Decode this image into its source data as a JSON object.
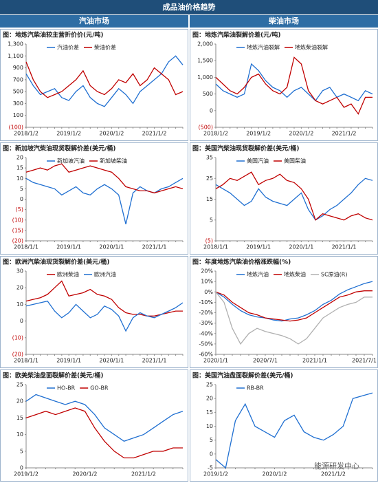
{
  "header": {
    "title": "成品油价格趋势",
    "left": "汽油市场",
    "right": "柴油市场",
    "watermark": "能源研发中心"
  },
  "chart_data": [
    {
      "type": "line",
      "title": "图：地炼汽柴油较主营折价价(元/吨)",
      "categories": [
        "2018/1/2",
        null,
        null,
        null,
        null,
        null,
        "2019/1/2",
        null,
        null,
        null,
        null,
        null,
        "2020/1/2",
        null,
        null,
        null,
        null,
        null,
        "2021/1/2",
        null,
        null,
        null,
        null
      ],
      "series": [
        {
          "name": "汽油价差",
          "color": "#1f6fd1",
          "values": [
            800,
            600,
            450,
            500,
            550,
            400,
            350,
            500,
            600,
            400,
            300,
            250,
            400,
            550,
            450,
            300,
            500,
            600,
            700,
            800,
            1000,
            1100,
            950
          ]
        },
        {
          "name": "柴油价差",
          "color": "#c00000",
          "values": [
            1000,
            700,
            500,
            400,
            450,
            500,
            600,
            700,
            850,
            600,
            500,
            450,
            550,
            700,
            650,
            800,
            600,
            700,
            900,
            800,
            700,
            450,
            500
          ]
        }
      ],
      "ylim": [
        -100,
        1300
      ],
      "yticks": [
        {
          "value": -100,
          "label": "(100)"
        },
        100,
        300,
        500,
        700,
        900,
        {
          "value": 1100,
          "label": "1,100"
        },
        {
          "value": 1300,
          "label": "1,300"
        }
      ]
    },
    {
      "type": "line",
      "title": "图：地炼汽柴油裂解价差(元/吨)",
      "categories": [
        "2018/1/2",
        null,
        null,
        null,
        null,
        null,
        "2019/1/2",
        null,
        null,
        null,
        null,
        null,
        "2020/1/2",
        null,
        null,
        null,
        null,
        null,
        "2021/1/2",
        null,
        null,
        null,
        null
      ],
      "series": [
        {
          "name": "地炼汽油裂解",
          "color": "#1f6fd1",
          "values": [
            800,
            600,
            500,
            400,
            500,
            1400,
            1200,
            900,
            700,
            600,
            400,
            600,
            700,
            500,
            300,
            600,
            700,
            400,
            500,
            400,
            300,
            600,
            500
          ]
        },
        {
          "name": "地炼柴油裂解",
          "color": "#c00000",
          "values": [
            1000,
            800,
            600,
            500,
            700,
            1000,
            1100,
            800,
            600,
            500,
            700,
            1600,
            1400,
            600,
            300,
            200,
            300,
            400,
            100,
            200,
            -100,
            400,
            400
          ]
        }
      ],
      "ylim": [
        -500,
        2000
      ],
      "yticks": [
        {
          "value": -500,
          "label": "(500)"
        },
        0,
        500,
        {
          "value": 1000,
          "label": "1,000"
        },
        {
          "value": 1500,
          "label": "1,500"
        },
        {
          "value": 2000,
          "label": "2,000"
        }
      ]
    },
    {
      "type": "line",
      "title": "图：新加坡汽柴油现货裂解价差(美元/桶)",
      "categories": [
        "2018/1/1",
        null,
        null,
        null,
        null,
        null,
        "2019/1/1",
        null,
        null,
        null,
        null,
        null,
        "2020/1/1",
        null,
        null,
        null,
        null,
        null,
        "2021/1/1",
        null,
        null,
        null,
        null
      ],
      "series": [
        {
          "name": "新加坡汽油",
          "color": "#1f6fd1",
          "values": [
            10,
            8,
            7,
            6,
            5,
            2,
            4,
            6,
            3,
            2,
            5,
            7,
            5,
            2,
            -12,
            3,
            6,
            4,
            3,
            5,
            6,
            8,
            10
          ]
        },
        {
          "name": "新加坡柴油",
          "color": "#c00000",
          "values": [
            13,
            14,
            15,
            14,
            16,
            17,
            13,
            14,
            15,
            16,
            15,
            14,
            13,
            10,
            6,
            5,
            4,
            4,
            3,
            4,
            5,
            6,
            5
          ]
        }
      ],
      "ylim": [
        -20,
        20
      ],
      "yticks": [
        {
          "value": -20,
          "label": "(20)"
        },
        {
          "value": -15,
          "label": "(15)"
        },
        {
          "value": -10,
          "label": "(10)"
        },
        {
          "value": -5,
          "label": "(5)"
        },
        0,
        5,
        10,
        15,
        20
      ]
    },
    {
      "type": "line",
      "title": "图：美国汽柴油现货裂解价差(美元/桶)",
      "categories": [
        "2018/1/1",
        null,
        null,
        null,
        null,
        null,
        "2019/1/1",
        null,
        null,
        null,
        null,
        null,
        "2020/1/1",
        null,
        null,
        null,
        null,
        null,
        "2021/1/1",
        null,
        null,
        null,
        null
      ],
      "series": [
        {
          "name": "美国汽油",
          "color": "#1f6fd1",
          "values": [
            22,
            20,
            18,
            15,
            12,
            14,
            20,
            16,
            14,
            13,
            12,
            15,
            18,
            10,
            5,
            7,
            10,
            12,
            15,
            18,
            22,
            25,
            24
          ]
        },
        {
          "name": "美国柴油",
          "color": "#c00000",
          "values": [
            20,
            22,
            25,
            24,
            26,
            28,
            22,
            24,
            25,
            27,
            24,
            23,
            20,
            15,
            5,
            8,
            7,
            6,
            5,
            7,
            8,
            6,
            5
          ]
        }
      ],
      "ylim": [
        -5,
        35
      ],
      "yticks": [
        {
          "value": -5,
          "label": "(5)"
        },
        5,
        15,
        25,
        35
      ]
    },
    {
      "type": "line",
      "title": "图：欧洲汽柴油现货裂解价差(美元/桶)",
      "categories": [
        "2018/1/1",
        null,
        null,
        null,
        null,
        null,
        "2019/1/1",
        null,
        null,
        null,
        null,
        null,
        "2020/1/1",
        null,
        null,
        null,
        null,
        null,
        "2021/1/1",
        null,
        null,
        null,
        null
      ],
      "series": [
        {
          "name": "欧洲柴油",
          "color": "#c00000",
          "values": [
            12,
            13,
            14,
            16,
            20,
            24,
            15,
            16,
            17,
            19,
            16,
            15,
            13,
            8,
            5,
            4,
            4,
            3,
            3,
            4,
            5,
            6,
            6
          ]
        },
        {
          "name": "欧洲汽油",
          "color": "#1f6fd1",
          "values": [
            9,
            10,
            11,
            12,
            6,
            2,
            5,
            10,
            6,
            2,
            4,
            9,
            7,
            3,
            -6,
            2,
            5,
            3,
            2,
            4,
            6,
            8,
            11
          ]
        }
      ],
      "ylim": [
        -20,
        30
      ],
      "yticks": [
        {
          "value": -20,
          "label": "(20)"
        },
        {
          "value": -10,
          "label": "(10)"
        },
        0,
        10,
        20,
        30
      ]
    },
    {
      "type": "line",
      "title": "图：年度地炼汽柴油价格涨跌幅(%)",
      "categories": [
        "2020/1/1",
        null,
        null,
        null,
        null,
        null,
        "2020/7/1",
        null,
        null,
        null,
        null,
        null,
        "2021/1/1",
        null,
        null,
        null,
        null,
        null,
        "2021/7/1",
        null
      ],
      "series": [
        {
          "name": "地炼汽油",
          "color": "#1f6fd1",
          "values": [
            0,
            -5,
            -12,
            -18,
            -22,
            -24,
            -25,
            -27,
            -28,
            -26,
            -25,
            -22,
            -18,
            -12,
            -8,
            -2,
            2,
            5,
            8,
            10
          ]
        },
        {
          "name": "地炼柴油",
          "color": "#c00000",
          "values": [
            0,
            -3,
            -10,
            -15,
            -20,
            -22,
            -25,
            -26,
            -27,
            -28,
            -27,
            -25,
            -20,
            -15,
            -10,
            -5,
            -3,
            0,
            1,
            1
          ]
        },
        {
          "name": "SC原油(R)",
          "color": "#b0b0b0",
          "values": [
            0,
            -10,
            -35,
            -50,
            -40,
            -35,
            -38,
            -40,
            -42,
            -45,
            -50,
            -45,
            -35,
            -25,
            -20,
            -15,
            -12,
            -10,
            -5,
            -5
          ]
        }
      ],
      "ylim": [
        -60,
        20
      ],
      "yticks": [
        {
          "value": -60,
          "label": "-60%"
        },
        {
          "value": -50,
          "label": "-50%"
        },
        {
          "value": -40,
          "label": "-40%"
        },
        {
          "value": -30,
          "label": "-30%"
        },
        {
          "value": -20,
          "label": "-20%"
        },
        {
          "value": -10,
          "label": "-10%"
        },
        {
          "value": 0,
          "label": "0%"
        },
        {
          "value": 10,
          "label": "10%"
        },
        {
          "value": 20,
          "label": "20%"
        }
      ]
    },
    {
      "type": "line",
      "title": "图：欧美柴油盘面裂解价差(美元/桶)",
      "categories": [
        "2019/1/2",
        null,
        null,
        null,
        null,
        null,
        "2020/1/2",
        null,
        null,
        null,
        null,
        null,
        "2021/1/2",
        null,
        null,
        null,
        null
      ],
      "series": [
        {
          "name": "HO-BR",
          "color": "#1f6fd1",
          "values": [
            20,
            22,
            21,
            20,
            19,
            20,
            19,
            16,
            12,
            10,
            8,
            9,
            10,
            12,
            14,
            16,
            17
          ]
        },
        {
          "name": "GO-BR",
          "color": "#c00000",
          "values": [
            15,
            16,
            17,
            16,
            17,
            18,
            17,
            12,
            8,
            5,
            3,
            3,
            4,
            5,
            5,
            6,
            6
          ]
        }
      ],
      "ylim": [
        0,
        25
      ],
      "yticks": [
        0,
        5,
        10,
        15,
        20,
        25
      ]
    },
    {
      "type": "line",
      "title": "图：美国汽油盘面裂解价差(美元/桶)",
      "categories": [
        "2019/1/2",
        null,
        null,
        null,
        null,
        null,
        "2020/1/2",
        null,
        null,
        null,
        null,
        null,
        "2021/1/2",
        null,
        null,
        null,
        null
      ],
      "series": [
        {
          "name": "RB-BR",
          "color": "#1f6fd1",
          "values": [
            -2,
            -5,
            12,
            18,
            10,
            8,
            6,
            12,
            14,
            8,
            6,
            5,
            7,
            10,
            20,
            21,
            22
          ]
        }
      ],
      "ylim": [
        -5,
        25
      ],
      "yticks": [
        -5,
        0,
        5,
        10,
        15,
        20,
        25
      ]
    }
  ]
}
